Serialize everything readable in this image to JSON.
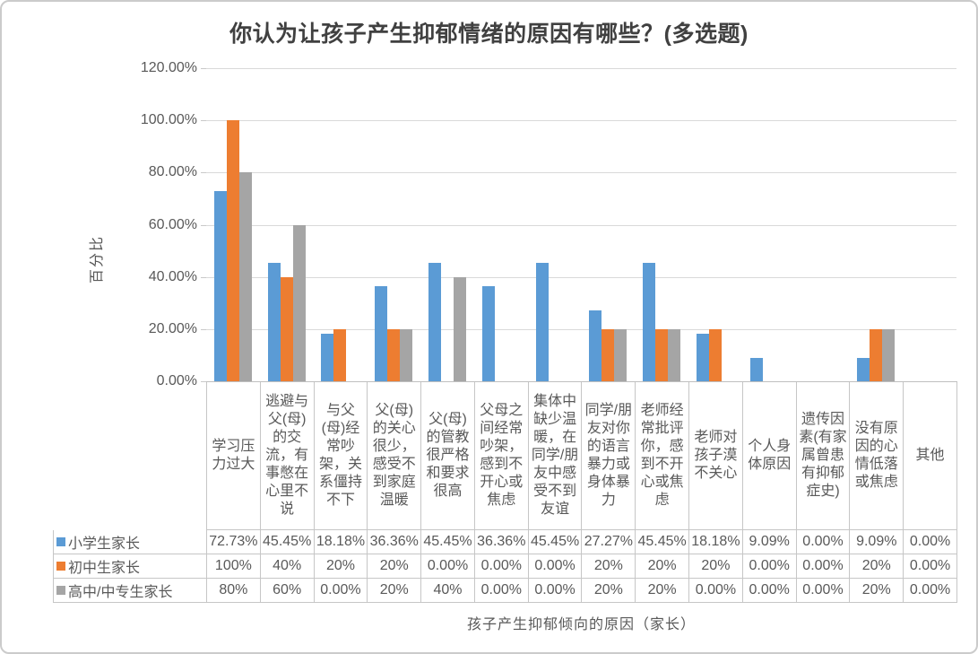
{
  "window": {
    "background": "#FFFFFF",
    "border_color": "#CBCBCB"
  },
  "chart": {
    "title": "你认为让孩子产生抑郁情绪的原因有哪些？(多选题)",
    "y_axis_title": "百分比",
    "x_axis_title": "孩子产生抑郁倾向的原因（家长）",
    "y_tick_labels": [
      "120.00%",
      "100.00%",
      "80.00%",
      "60.00%",
      "40.00%",
      "20.00%",
      "0.00%"
    ],
    "colors": {
      "gridline": "#D9D9D9",
      "axis_line": "#BFBFBF",
      "table_border": "#C6C6C6",
      "axis_text": "#595959",
      "title_text": "#404040"
    }
  },
  "chart_data": {
    "type": "bar",
    "title": "你认为让孩子产生抑郁情绪的原因有哪些？(多选题)",
    "xlabel": "孩子产生抑郁倾向的原因（家长）",
    "ylabel": "百分比",
    "ylim": [
      0,
      120
    ],
    "y_tick_step": 20,
    "grid": true,
    "legend_position": "data-table-left",
    "categories": [
      "学习压力过大",
      "逃避与父(母)的交流，有事憋在心里不说",
      "与父(母)经常吵架，关系僵持不下",
      "父(母)的关心很少，感受不到家庭温暖",
      "父(母)的管教很严格和要求很高",
      "父母之间经常吵架，感到不开心或焦虑",
      "集体中缺少温暖，在同学/朋友中感受不到友谊",
      "同学/朋友对你的语言暴力或身体暴力",
      "老师经常批评你，感到不开心或焦虑",
      "老师对孩子漠不关心",
      "个人身体原因",
      "遗传因素(有家属曾患有抑郁症史)",
      "没有原因的心情低落或焦虑",
      "其他"
    ],
    "series": [
      {
        "name": "小学生家长",
        "color": "#5B9BD5",
        "values": [
          72.73,
          45.45,
          18.18,
          36.36,
          45.45,
          36.36,
          45.45,
          27.27,
          45.45,
          18.18,
          9.09,
          0,
          9.09,
          0
        ],
        "labels": [
          "72.73%",
          "45.45%",
          "18.18%",
          "36.36%",
          "45.45%",
          "36.36%",
          "45.45%",
          "27.27%",
          "45.45%",
          "18.18%",
          "9.09%",
          "0.00%",
          "9.09%",
          "0.00%"
        ]
      },
      {
        "name": "初中生家长",
        "color": "#ED7D31",
        "values": [
          100,
          40,
          20,
          20,
          0,
          0,
          0,
          20,
          20,
          20,
          0,
          0,
          20,
          0
        ],
        "labels": [
          "100%",
          "40%",
          "20%",
          "20%",
          "0.00%",
          "0.00%",
          "0.00%",
          "20%",
          "20%",
          "20%",
          "0.00%",
          "0.00%",
          "20%",
          "0.00%"
        ]
      },
      {
        "name": "高中/中专生家长",
        "color": "#A5A5A5",
        "values": [
          80,
          60,
          0,
          20,
          40,
          0,
          0,
          20,
          20,
          0,
          0,
          0,
          20,
          0
        ],
        "labels": [
          "80%",
          "60%",
          "0.00%",
          "20%",
          "40%",
          "0.00%",
          "0.00%",
          "20%",
          "20%",
          "0.00%",
          "0.00%",
          "0.00%",
          "20%",
          "0.00%"
        ]
      }
    ]
  }
}
